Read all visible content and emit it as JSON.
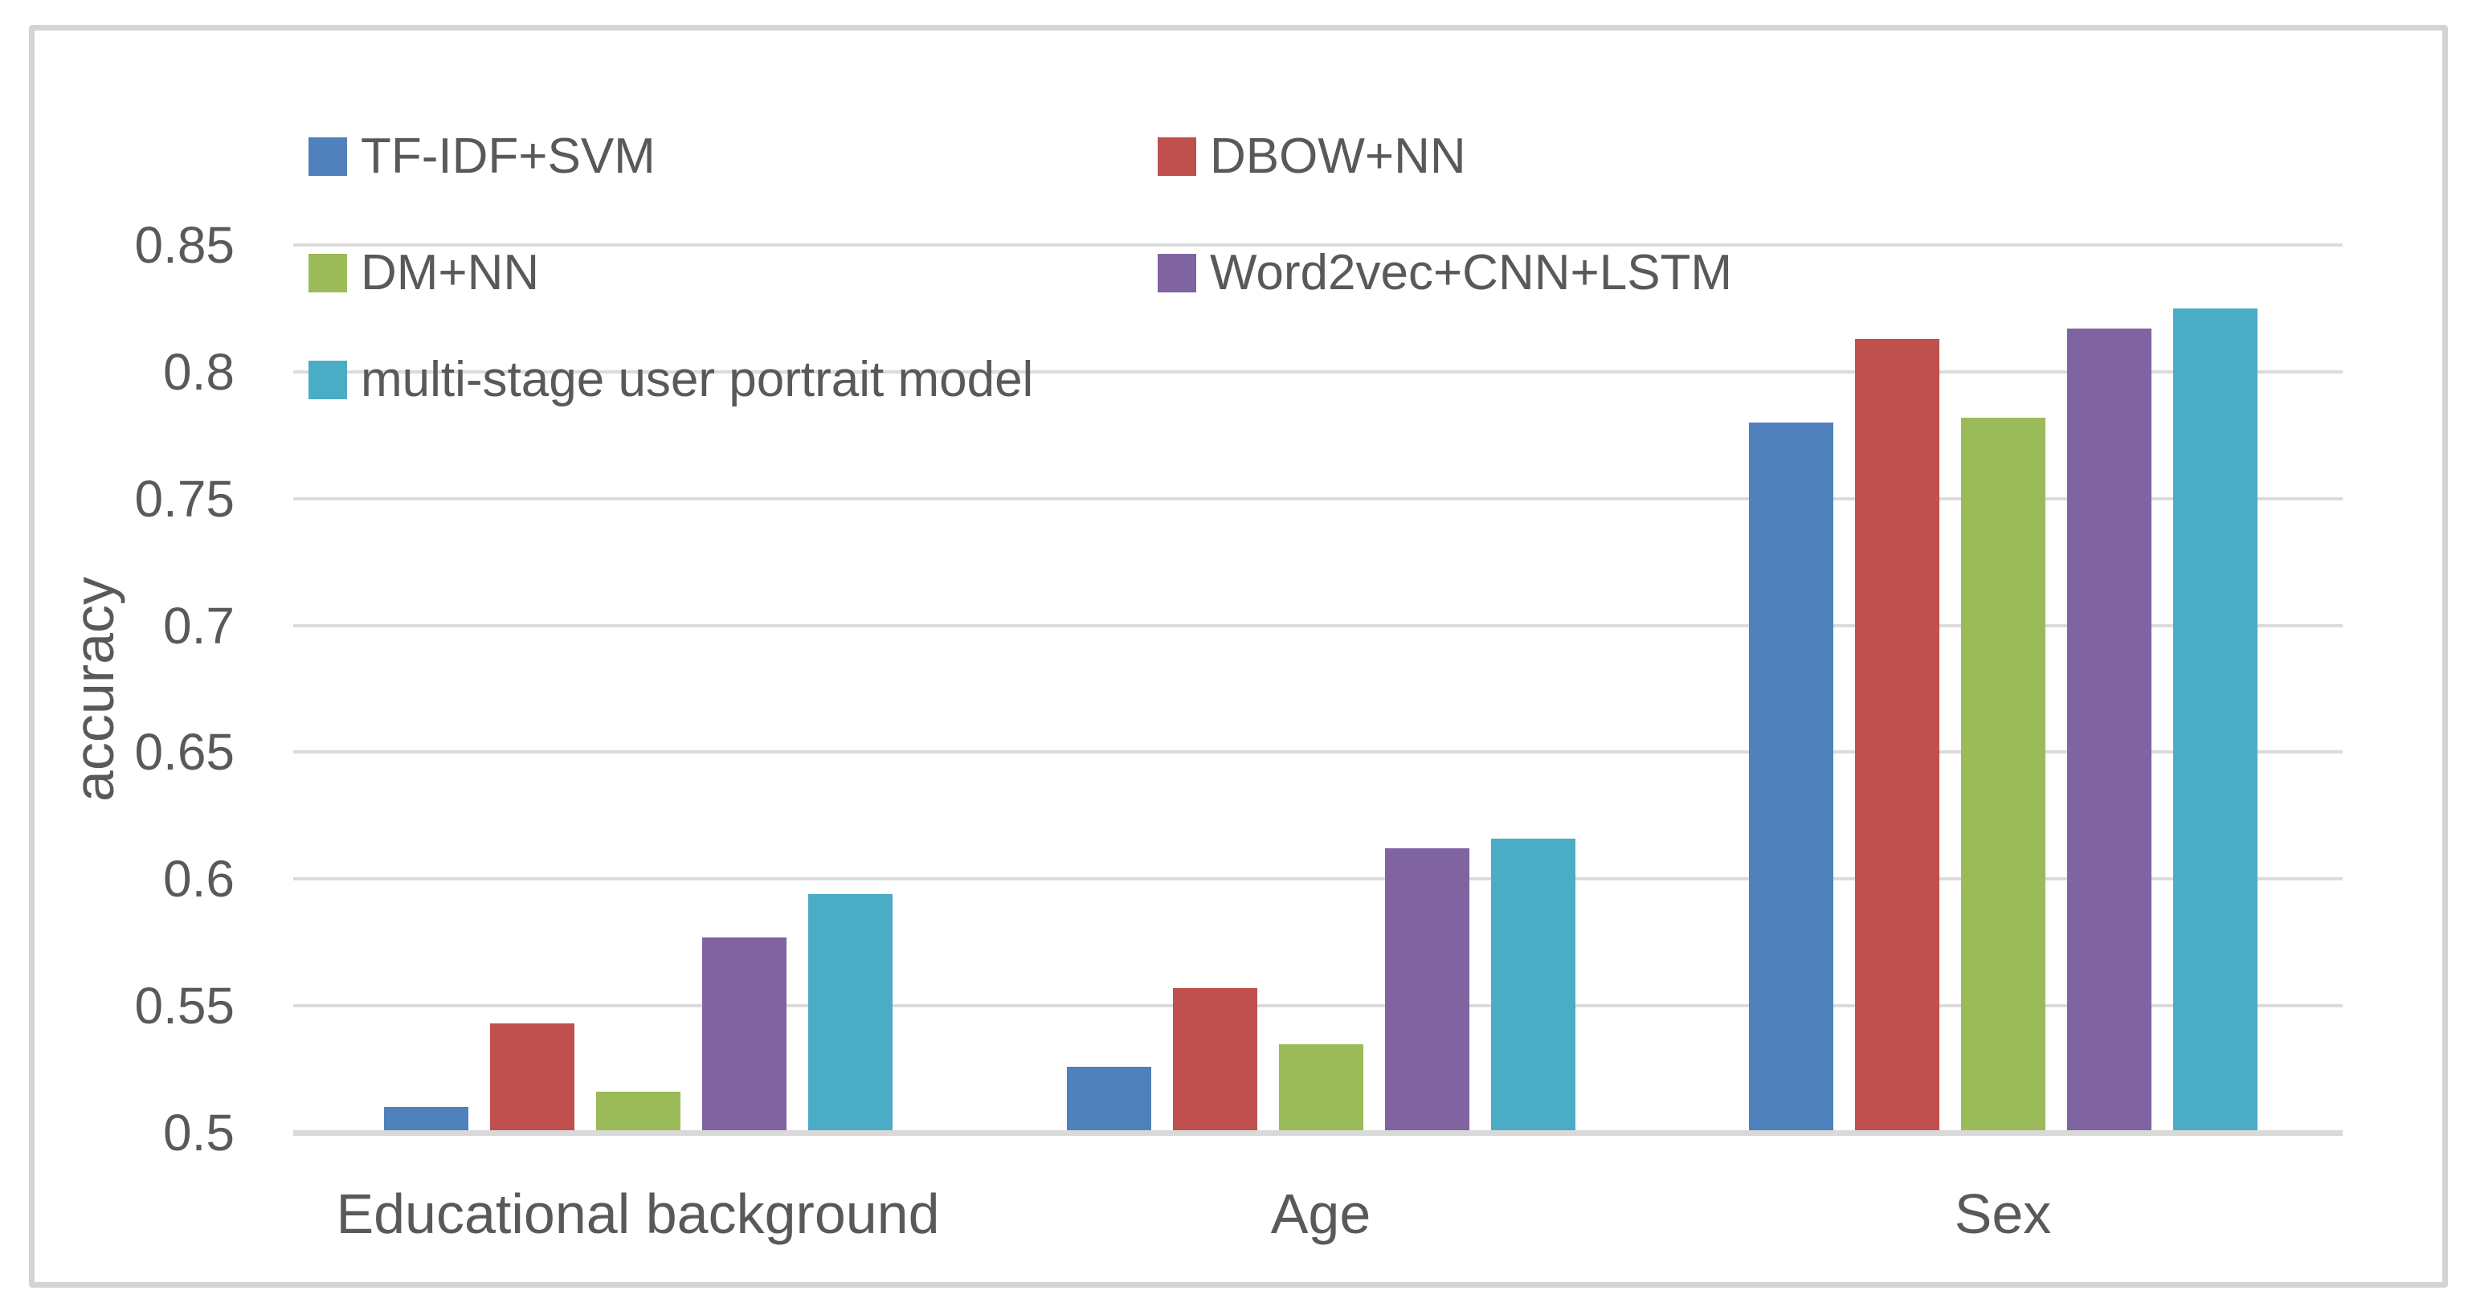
{
  "figure": {
    "y_axis": {
      "tick_labels": [
        "0.5",
        "0.55",
        "0.6",
        "0.65",
        "0.7",
        "0.75",
        "0.8",
        "0.85"
      ],
      "min": 0.5,
      "max": 0.85,
      "step": 0.05
    },
    "colors": {
      "text": "#595959",
      "gridline": "#DBDBDB",
      "axis_line": "#D9D9D9",
      "frame": "#D4D4D4",
      "background": "#FFFFFF"
    }
  },
  "chart_data": {
    "type": "bar",
    "title": "",
    "xlabel": "",
    "ylabel": "accuracy",
    "ylim": [
      0.5,
      0.85
    ],
    "grid": "horizontal",
    "legend_position": "top-left inside plot, two columns",
    "categories": [
      "Educational background",
      "Age",
      "Sex"
    ],
    "series": [
      {
        "name": "TF-IDF+SVM",
        "color": "#4F81BD",
        "values": [
          0.51,
          0.526,
          0.78
        ]
      },
      {
        "name": "DBOW+NN",
        "color": "#C0504D",
        "values": [
          0.543,
          0.557,
          0.813
        ]
      },
      {
        "name": "DM+NN",
        "color": "#9BBB59",
        "values": [
          0.516,
          0.535,
          0.782
        ]
      },
      {
        "name": "Word2vec+CNN+LSTM",
        "color": "#8064A2",
        "values": [
          0.577,
          0.612,
          0.817
        ]
      },
      {
        "name": "multi-stage user portrait model",
        "color": "#4BACC6",
        "values": [
          0.594,
          0.616,
          0.825
        ]
      }
    ]
  }
}
